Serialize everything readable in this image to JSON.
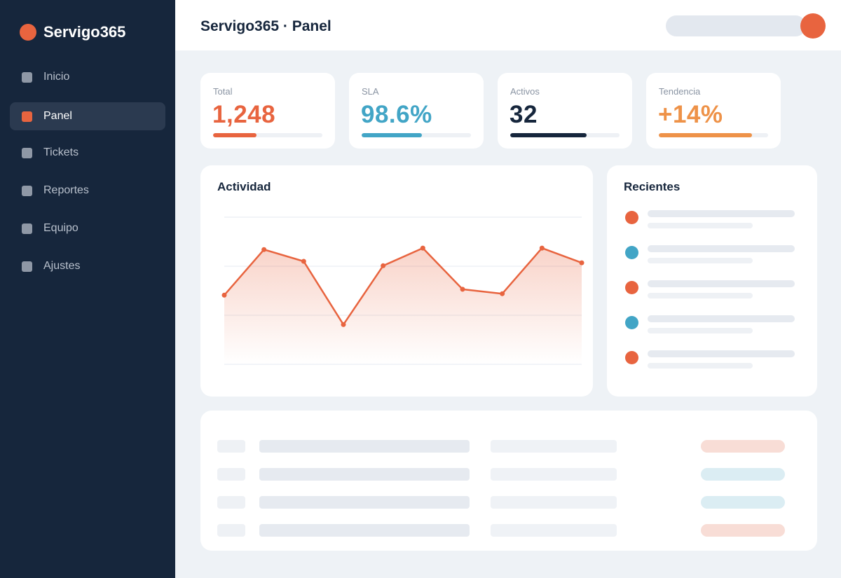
{
  "colors": {
    "accent": "#e8643f",
    "teal": "#42a5c6",
    "navy": "#16263c",
    "orange": "#ee9248",
    "pill_red": "#f8ddd6",
    "pill_teal": "#dbedf3"
  },
  "sidebar": {
    "brand": "Servigo365",
    "items": [
      {
        "label": "Inicio",
        "icon": "home-icon",
        "active": false
      },
      {
        "label": "Panel",
        "icon": "dashboard-icon",
        "active": true
      },
      {
        "label": "Tickets",
        "icon": "ticket-icon",
        "active": false
      },
      {
        "label": "Reportes",
        "icon": "report-icon",
        "active": false
      },
      {
        "label": "Equipo",
        "icon": "team-icon",
        "active": false
      },
      {
        "label": "Ajustes",
        "icon": "settings-icon",
        "active": false
      }
    ]
  },
  "header": {
    "title": "Servigo365 · Panel"
  },
  "stats": [
    {
      "label": "Total",
      "value": "1,248",
      "progress": 0.4,
      "color": "#e8643f"
    },
    {
      "label": "SLA",
      "value": "98.6%",
      "progress": 0.55,
      "color": "#42a5c6"
    },
    {
      "label": "Activos",
      "value": "32",
      "progress": 0.7,
      "color": "#16263c"
    },
    {
      "label": "Tendencia",
      "value": "+14%",
      "progress": 0.85,
      "color": "#ee9248"
    }
  ],
  "activity": {
    "title": "Actividad"
  },
  "chart_data": {
    "type": "area",
    "title": "Actividad",
    "values": [
      0.47,
      0.78,
      0.7,
      0.27,
      0.67,
      0.79,
      0.51,
      0.48,
      0.79,
      0.69
    ],
    "ylim": [
      0,
      1
    ],
    "grid": true,
    "color": "#e8643f"
  },
  "recent": {
    "title": "Recientes",
    "items": [
      {
        "color": "#e8643f"
      },
      {
        "color": "#42a5c6"
      },
      {
        "color": "#e8643f"
      },
      {
        "color": "#42a5c6"
      },
      {
        "color": "#e8643f"
      }
    ]
  },
  "table": {
    "rows": [
      {
        "status_color": "#f8ddd6"
      },
      {
        "status_color": "#dbedf3"
      },
      {
        "status_color": "#dbedf3"
      },
      {
        "status_color": "#f8ddd6"
      }
    ]
  }
}
